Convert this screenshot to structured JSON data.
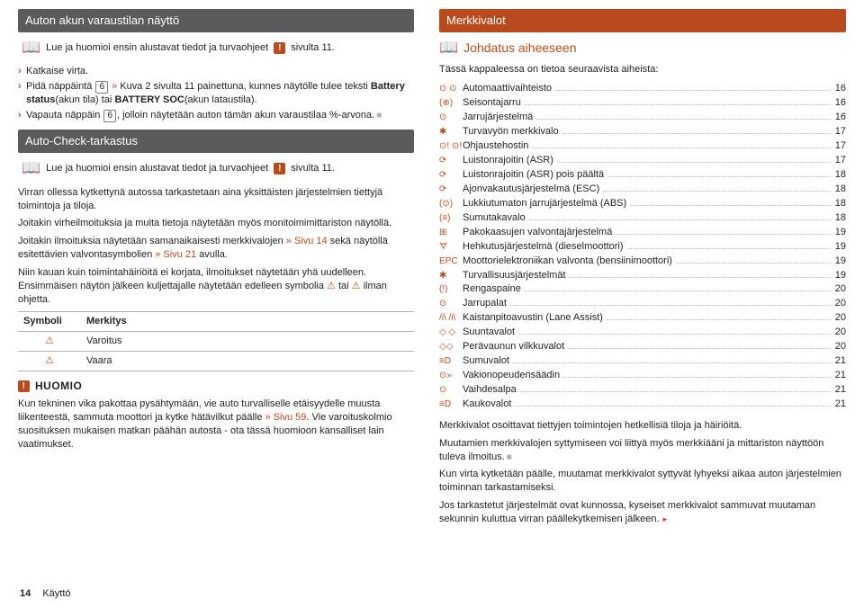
{
  "left": {
    "title1": "Auton akun varaustilan näyttö",
    "read1": "Lue ja huomioi ensin alustavat tiedot ja turvaohjeet",
    "read1_suffix": "sivulta 11.",
    "bullets1": [
      "Katkaise virta.",
      "Pidä näppäintä |6| » Kuva 2 sivulta 11 painettuna, kunnes näytölle tulee teksti Battery status(akun tila) tai BATTERY SOC(akun lataustila).",
      "Vapauta näppäin |6|, jolloin näytetään auton tämän akun varaustilaa %-arvona."
    ],
    "title2": "Auto-Check-tarkastus",
    "read2": "Lue ja huomioi ensin alustavat tiedot ja turvaohjeet",
    "read2_suffix": "sivulta 11.",
    "p1": "Virran ollessa kytkettynä autossa tarkastetaan aina yksittäisten järjestelmien tiettyjä toimintoja ja tiloja.",
    "p2": "Joitakin virheilmoituksia ja muita tietoja näytetään myös monitoimimittariston näytöllä.",
    "p3_a": "Joitakin ilmoituksia näytetään samanaikaisesti merkkivalojen ",
    "p3_b": "» Sivu 14",
    "p3_c": " sekä näytöllä esitettävien valvontasymbolien ",
    "p3_d": "» Sivu 21",
    "p3_e": " avulla.",
    "p4_a": "Niin kauan kuin toimintahäiriöitä ei korjata, ilmoitukset näytetään yhä uudelleen. Ensimmäisen näytön jälkeen kuljettajalle näytetään edelleen symbolia ",
    "p4_b": " tai ",
    "p4_c": " ilman ohjetta.",
    "table": {
      "h1": "Symboli",
      "h2": "Merkitys",
      "r1": "Varoitus",
      "r2": "Vaara"
    },
    "huomio_title": "HUOMIO",
    "huomio_p_a": "Kun tekninen vika pakottaa pysähtymään, vie auto turvalliselle etäisyydelle muusta liikenteestä, sammuta moottori ja kytke hätävilkut päälle ",
    "huomio_p_b": "» Sivu 59",
    "huomio_p_c": ". Vie varoituskolmio suosituksen mukaisen matkan päähän autosta - ota tässä huomioon kansalliset lain vaatimukset."
  },
  "right": {
    "title": "Merkkivalot",
    "sub": "Johdatus aiheeseen",
    "intro": "Tässä kappaleessa on tietoa seuraavista aiheista:",
    "toc": [
      {
        "ic": "⊙ ⊙",
        "label": "Automaattivaihteisto",
        "page": "16"
      },
      {
        "ic": "(⊕)",
        "label": "Seisontajarru",
        "page": "16"
      },
      {
        "ic": "⊙",
        "label": "Jarrujärjestelmä",
        "page": "16"
      },
      {
        "ic": "✱",
        "label": "Turvavyön merkkivalo",
        "page": "17"
      },
      {
        "ic": "⊙! ⊙!",
        "label": "Ohjaustehostin",
        "page": "17"
      },
      {
        "ic": "⟳",
        "label": "Luistonrajoitin (ASR)",
        "page": "17"
      },
      {
        "ic": "⟳",
        "label": "Luistonrajoitin (ASR) pois päältä",
        "page": "18"
      },
      {
        "ic": "⟳",
        "label": "Ajonvakautusjärjestelmä (ESC)",
        "page": "18"
      },
      {
        "ic": "(⊙)",
        "label": "Lukkiutumaton jarrujärjestelmä (ABS)",
        "page": "18"
      },
      {
        "ic": "(≡)",
        "label": "Sumutakavalo",
        "page": "18"
      },
      {
        "ic": "⊞",
        "label": "Pakokaasujen valvontajärjestelmä",
        "page": "19"
      },
      {
        "ic": "ᗊ",
        "label": "Hehkutusjärjestelmä (dieselmoottori)",
        "page": "19"
      },
      {
        "ic": "EPC",
        "label": "Moottorielektroniikan valvonta (bensiinimoottori)",
        "page": "19"
      },
      {
        "ic": "✱",
        "label": "Turvallisuusjärjestelmät",
        "page": "19"
      },
      {
        "ic": "(!)",
        "label": "Rengaspaine",
        "page": "20"
      },
      {
        "ic": "⊙",
        "label": "Jarrupalat",
        "page": "20"
      },
      {
        "ic": "/i\\ /i\\",
        "label": "Kaistanpitoavustin (Lane Assist)",
        "page": "20"
      },
      {
        "ic": "◇ ◇",
        "label": "Suuntavalot",
        "page": "20"
      },
      {
        "ic": "◇◇",
        "label": "Perävaunun vilkkuvalot",
        "page": "20"
      },
      {
        "ic": "≡D",
        "label": "Sumuvalot",
        "page": "21"
      },
      {
        "ic": "⊙»",
        "label": "Vakionopeudensäädin",
        "page": "21"
      },
      {
        "ic": "⊙",
        "label": "Vaihdesalpa",
        "page": "21"
      },
      {
        "ic": "≡D",
        "label": "Kaukovalot",
        "page": "21"
      }
    ],
    "p1": "Merkkivalot osoittavat tiettyjen toimintojen hetkellisiä tiloja ja häiriöitä.",
    "p2": "Muutamien merkkivalojen syttymiseen voi liittyä myös merkkiääni ja mittariston näyttöön tuleva ilmoitus.",
    "p3": "Kun virta kytketään päälle, muutamat merkkivalot syttyvät lyhyeksi aikaa auton järjestelmien toiminnan tarkastamiseksi.",
    "p4": "Jos tarkastetut järjestelmät ovat kunnossa, kyseiset merkkivalot sammuvat muutaman sekunnin kuluttua virran päällekytkemisen jälkeen."
  },
  "footer": {
    "page": "14",
    "section": "Käyttö"
  }
}
